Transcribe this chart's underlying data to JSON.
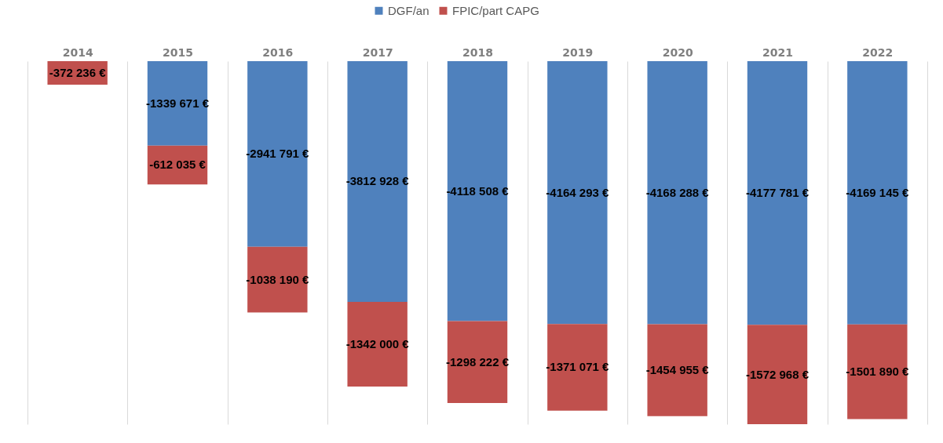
{
  "chart_data": {
    "type": "bar",
    "stacked": true,
    "categories": [
      "2014",
      "2015",
      "2016",
      "2017",
      "2018",
      "2019",
      "2020",
      "2021",
      "2022"
    ],
    "series": [
      {
        "name": "DGF/an",
        "color": "#4f81bd",
        "values": [
          null,
          -1339671,
          -2941791,
          -3812928,
          -4118508,
          -4164293,
          -4168288,
          -4177781,
          -4169145
        ],
        "value_labels": [
          null,
          "-1339 671 €",
          "-2941 791 €",
          "-3812 928 €",
          "-4118 508 €",
          "-4164 293 €",
          "-4168 288 €",
          "-4177 781 €",
          "-4169 145 €"
        ]
      },
      {
        "name": "FPIC/part CAPG",
        "color": "#c0504d",
        "values": [
          -372236,
          -612035,
          -1038190,
          -1342000,
          -1298222,
          -1371071,
          -1454955,
          -1572968,
          -1501890
        ],
        "value_labels": [
          "-372 236 €",
          "-612 035 €",
          "-1038 190 €",
          "-1342 000 €",
          "-1298 222 €",
          "-1371 071 €",
          "-1454 955 €",
          "-1572 968 €",
          "-1501 890 €"
        ]
      }
    ],
    "legend": "top",
    "grid": "x"
  }
}
